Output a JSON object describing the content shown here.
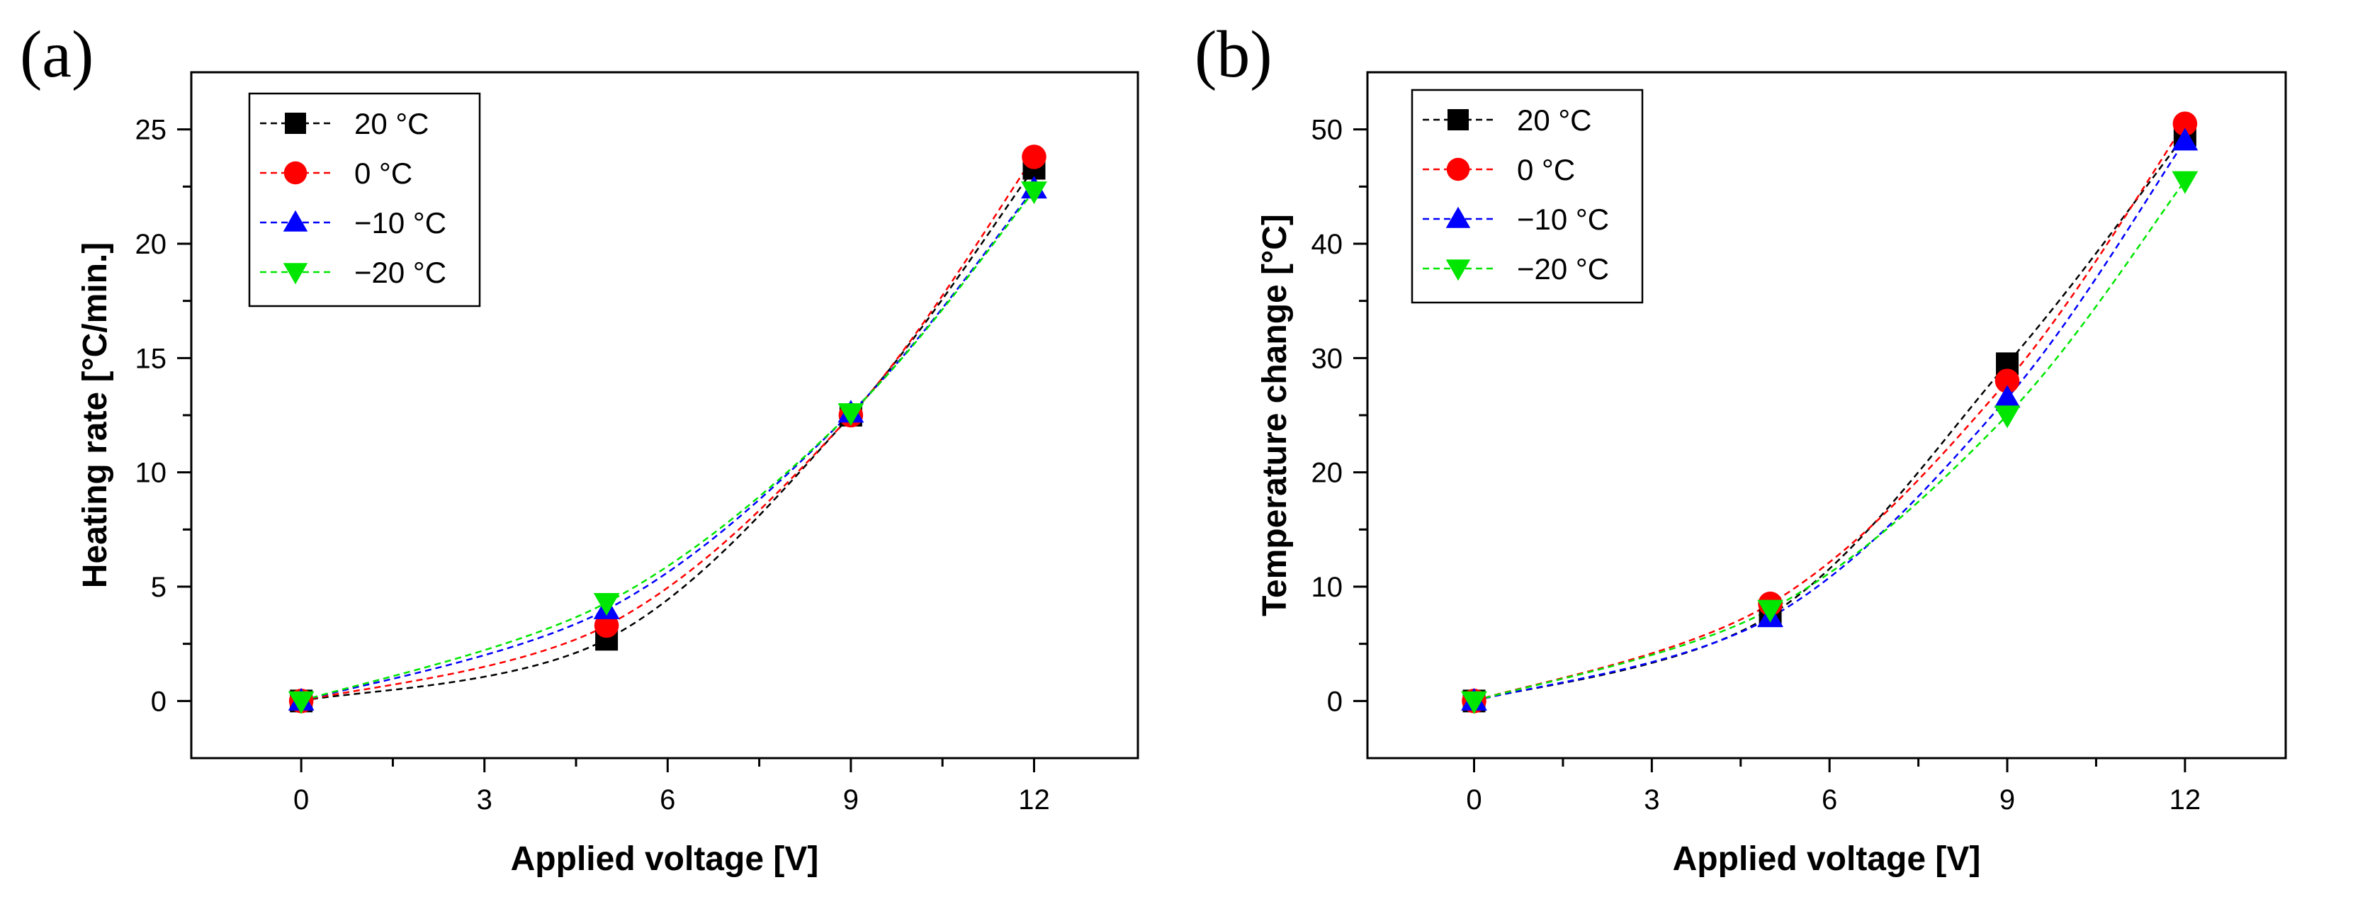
{
  "chart_data": [
    {
      "type": "line",
      "panel_label": "(a)",
      "xlabel": "Applied voltage [V]",
      "ylabel": "Heating rate [°C/min.]",
      "xlim": [
        -1.8,
        13.7
      ],
      "ylim": [
        -2.5,
        27.5
      ],
      "xticks": [
        0,
        3,
        6,
        9,
        12
      ],
      "yticks": [
        0,
        5,
        10,
        15,
        20,
        25
      ],
      "grid": false,
      "legend_position": "top-left",
      "series": [
        {
          "name": "20 °C",
          "color": "#000000",
          "marker": "square",
          "x": [
            0,
            5,
            9,
            12
          ],
          "y": [
            0.0,
            2.7,
            12.5,
            23.3
          ]
        },
        {
          "name": "0 °C",
          "color": "#ff0000",
          "marker": "circle",
          "x": [
            0,
            5,
            9,
            12
          ],
          "y": [
            0.0,
            3.3,
            12.5,
            23.8
          ]
        },
        {
          "name": "−10 °C",
          "color": "#0000ff",
          "marker": "triangle-up",
          "x": [
            0,
            5,
            9,
            12
          ],
          "y": [
            0.0,
            4.0,
            12.6,
            22.4
          ]
        },
        {
          "name": "−20 °C",
          "color": "#00e600",
          "marker": "triangle-down",
          "x": [
            0,
            5,
            9,
            12
          ],
          "y": [
            0.0,
            4.3,
            12.6,
            22.3
          ]
        }
      ]
    },
    {
      "type": "line",
      "panel_label": "(b)",
      "xlabel": "Applied voltage [V]",
      "ylabel": "Temperature change [°C]",
      "xlim": [
        -1.8,
        13.7
      ],
      "ylim": [
        -5,
        55
      ],
      "xticks": [
        0,
        3,
        6,
        9,
        12
      ],
      "yticks": [
        0,
        10,
        20,
        30,
        40,
        50
      ],
      "grid": false,
      "legend_position": "top-left",
      "series": [
        {
          "name": "20 °C",
          "color": "#000000",
          "marker": "square",
          "x": [
            0,
            5,
            9,
            12
          ],
          "y": [
            0.0,
            7.5,
            29.5,
            49.5
          ]
        },
        {
          "name": "0 °C",
          "color": "#ff0000",
          "marker": "circle",
          "x": [
            0,
            5,
            9,
            12
          ],
          "y": [
            0.0,
            8.5,
            28.0,
            50.5
          ]
        },
        {
          "name": "−10 °C",
          "color": "#0000ff",
          "marker": "triangle-up",
          "x": [
            0,
            5,
            9,
            12
          ],
          "y": [
            0.0,
            7.3,
            26.5,
            49.0
          ]
        },
        {
          "name": "−20 °C",
          "color": "#00e600",
          "marker": "triangle-down",
          "x": [
            0,
            5,
            9,
            12
          ],
          "y": [
            0.0,
            8.0,
            25.0,
            45.5
          ]
        }
      ]
    }
  ]
}
